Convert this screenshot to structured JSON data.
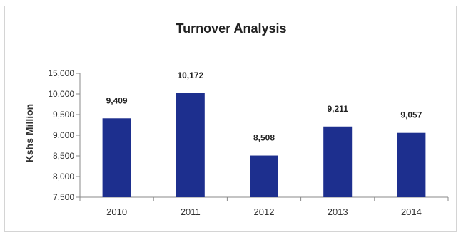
{
  "colors": {
    "bar": "#1d2f8e",
    "axis": "#888888"
  },
  "chart_data": {
    "type": "bar",
    "title": "Turnover Analysis",
    "xlabel": "",
    "ylabel": "Kshs Million",
    "categories": [
      "2010",
      "2011",
      "2012",
      "2013",
      "2014"
    ],
    "values": [
      9409,
      10172,
      8508,
      9211,
      9057
    ],
    "value_labels": [
      "9,409",
      "10,172",
      "8,508",
      "9,211",
      "9,057"
    ],
    "ylim": [
      7500,
      15000
    ],
    "yticks": [
      7500,
      8000,
      8500,
      9000,
      9500,
      10000,
      15000
    ],
    "ytick_labels": [
      "7,500",
      "8,000",
      "8,500",
      "9,000",
      "9,500",
      "10,000",
      "15,000"
    ],
    "grid": false,
    "legend": "none"
  }
}
